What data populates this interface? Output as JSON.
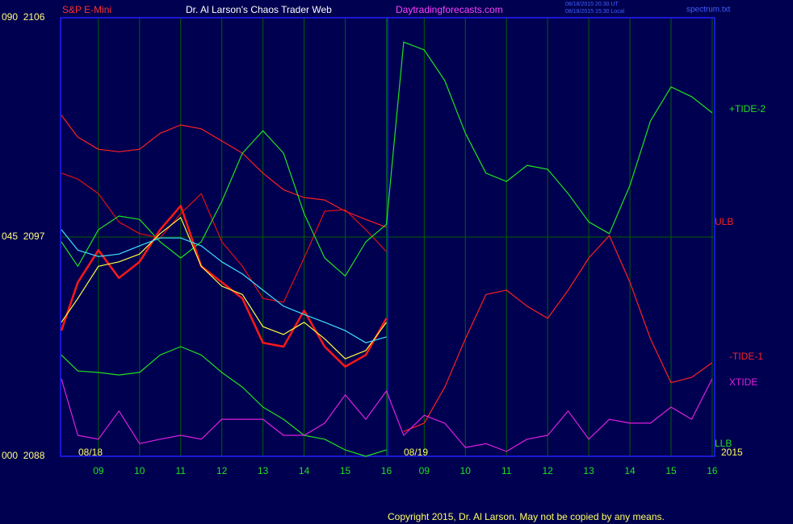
{
  "chart_data": {
    "type": "line",
    "instrument": "S&P E-Mini",
    "title": "Dr. Al Larson's Chaos Trader Web",
    "website": "Daytradingforecasts.com",
    "timestamps": [
      "08/18/2015 20:30 UT",
      "08/18/2015 15:30 Local"
    ],
    "file": "spectrum.txt",
    "date_labels": [
      "08/18",
      "08/19",
      "2015"
    ],
    "copyright": "Copyright 2015, Dr. Al Larson. May not be copied by any means.",
    "x": [
      8.1,
      8.5,
      9,
      9.5,
      10,
      10.5,
      11,
      11.5,
      12,
      12.5,
      13,
      13.5,
      14,
      14.5,
      15,
      15.5,
      16,
      16.42,
      16.92,
      17.42,
      17.92,
      18.42,
      18.92,
      19.42,
      19.92,
      20.42,
      20.92,
      21.42,
      21.92,
      22.42,
      22.92,
      23.42,
      23.92
    ],
    "xlim": [
      8.08,
      23.98
    ],
    "xticks": [
      {
        "value": 9,
        "label": "09"
      },
      10,
      11,
      12,
      13,
      14,
      15,
      16,
      {
        "value": 16.92,
        "label": "09"
      },
      {
        "value": 17.92,
        "label": "10"
      },
      {
        "value": 18.92,
        "label": "11"
      },
      {
        "value": 19.92,
        "label": "12"
      },
      {
        "value": 20.92,
        "label": "13"
      },
      {
        "value": 21.92,
        "label": "14"
      },
      {
        "value": 22.92,
        "label": "15"
      },
      {
        "value": 23.92,
        "label": "16"
      }
    ],
    "ylim": [
      0,
      90
    ],
    "yticks": [
      {
        "value": 90,
        "label": "090  2106"
      },
      {
        "value": 45,
        "label": "045  2097"
      },
      {
        "value": 0,
        "label": "000  2088"
      }
    ],
    "grid": true,
    "series": [
      {
        "name": "ULB",
        "color": "#ff2020",
        "values": [
          70.0,
          65.5,
          63.0,
          62.5,
          63.0,
          66.3,
          68.0,
          67.2,
          64.7,
          62.2,
          58.1,
          54.7,
          53.1,
          52.6,
          50.3,
          48.6,
          47.0,
          null,
          null,
          null,
          null,
          null,
          null,
          null,
          null,
          null,
          null,
          null,
          null,
          null,
          null,
          null,
          null
        ]
      },
      {
        "color": "#e01010",
        "values": [
          58.1,
          56.9,
          53.9,
          48.1,
          45.7,
          44.8,
          49.8,
          53.9,
          44.0,
          39.0,
          32.4,
          31.6,
          40.7,
          50.3,
          50.6,
          46.5,
          42.0,
          null,
          null,
          null,
          null,
          null,
          null,
          null,
          null,
          null,
          null,
          null,
          null,
          null,
          null,
          null,
          null
        ]
      },
      {
        "name": "-TIDE-1",
        "color": "#ff2020",
        "values": [
          null,
          null,
          null,
          null,
          null,
          null,
          null,
          null,
          null,
          null,
          null,
          null,
          null,
          null,
          null,
          null,
          null,
          5.1,
          6.8,
          14.2,
          24.1,
          33.2,
          34.1,
          30.8,
          28.3,
          34.1,
          40.7,
          45.3,
          35.7,
          24.1,
          15.1,
          16.2,
          19.2
        ]
      },
      {
        "name": "+TIDE-2",
        "color": "#20e020",
        "values": [
          44.0,
          39.0,
          46.5,
          49.3,
          48.6,
          44.0,
          40.7,
          44.0,
          52.3,
          62.2,
          66.8,
          62.2,
          49.8,
          40.7,
          37.0,
          44.0,
          47.6,
          85.0,
          83.4,
          77.1,
          66.3,
          58.1,
          56.4,
          59.7,
          58.9,
          53.9,
          48.1,
          45.7,
          55.6,
          68.8,
          75.8,
          73.8,
          70.5
        ]
      },
      {
        "name": "LLB",
        "color": "#20e020",
        "values": [
          20.8,
          17.5,
          17.2,
          16.7,
          17.2,
          20.8,
          22.5,
          20.8,
          17.2,
          14.2,
          10.1,
          7.6,
          4.3,
          3.5,
          1.3,
          0,
          1.3,
          null,
          null,
          null,
          null,
          null,
          null,
          null,
          null,
          null,
          null,
          null,
          null,
          null,
          null,
          null,
          null
        ]
      },
      {
        "name": "XTIDE",
        "color": "#e020e0",
        "values": [
          15.9,
          4.3,
          3.5,
          9.3,
          2.6,
          3.5,
          4.3,
          3.5,
          7.6,
          7.6,
          7.6,
          4.3,
          4.3,
          6.8,
          12.6,
          7.6,
          13.4,
          4.3,
          8.4,
          6.8,
          1.8,
          2.6,
          1.0,
          3.5,
          4.3,
          9.3,
          3.5,
          7.6,
          6.8,
          6.8,
          10.1,
          7.6,
          15.9
        ]
      },
      {
        "color": "#ff1818",
        "values": [
          25.8,
          35.7,
          42.3,
          36.6,
          39.9,
          46.5,
          51.4,
          39.0,
          35.7,
          32.4,
          23.3,
          22.5,
          29.9,
          22.5,
          18.4,
          20.8,
          28.3,
          null,
          null,
          null,
          null,
          null,
          null,
          null,
          null,
          null,
          null,
          null,
          null,
          null,
          null,
          null,
          null
        ]
      },
      {
        "color": "#ffff40",
        "values": [
          27.5,
          32.4,
          39.0,
          39.9,
          41.5,
          45.7,
          49.0,
          39.0,
          34.9,
          33.2,
          26.6,
          25.0,
          27.5,
          24.1,
          20.0,
          21.7,
          27.5,
          null,
          null,
          null,
          null,
          null,
          null,
          null,
          null,
          null,
          null,
          null,
          null,
          null,
          null,
          null,
          null
        ]
      },
      {
        "color": "#40e0ff",
        "values": [
          46.5,
          42.3,
          41.0,
          41.5,
          43.2,
          44.8,
          44.8,
          43.2,
          39.9,
          37.4,
          34.1,
          30.8,
          29.1,
          27.5,
          25.8,
          23.3,
          24.5,
          null,
          null,
          null,
          null,
          null,
          null,
          null,
          null,
          null,
          null,
          null,
          null,
          null,
          null,
          null,
          null
        ]
      }
    ]
  }
}
